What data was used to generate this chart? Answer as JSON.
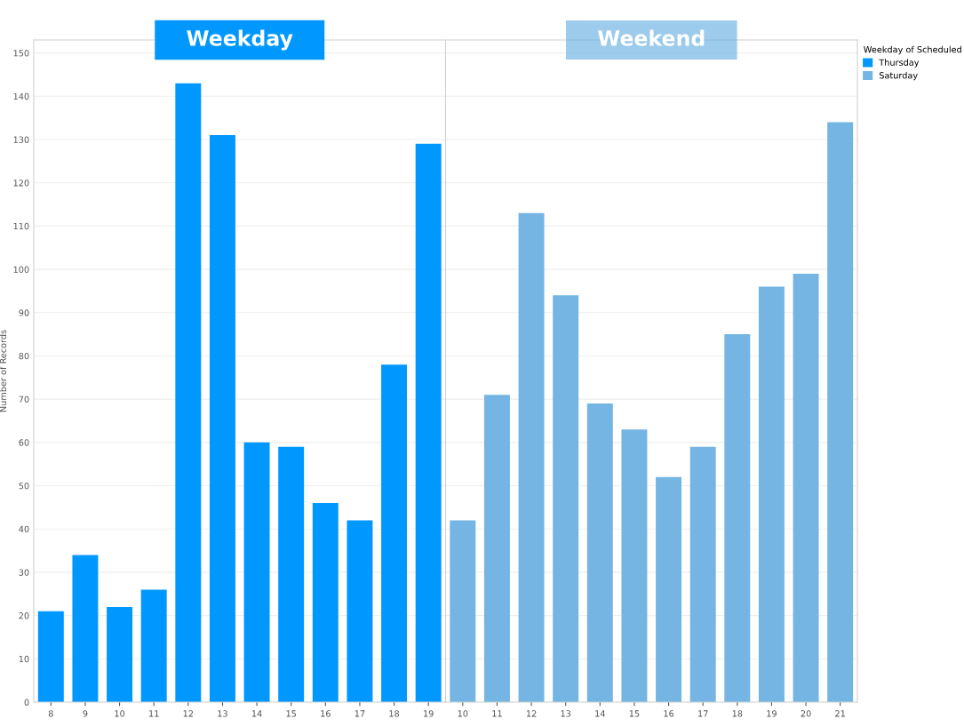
{
  "chart_data": [
    {
      "type": "bar",
      "title": "Weekday",
      "ylabel": "Number of Records",
      "categories": [
        "8",
        "9",
        "10",
        "11",
        "12",
        "13",
        "14",
        "15",
        "16",
        "17",
        "18",
        "19"
      ],
      "series": [
        {
          "name": "Thursday",
          "color": "#0098ff",
          "values": [
            21,
            34,
            22,
            26,
            143,
            131,
            60,
            59,
            46,
            42,
            78,
            129
          ]
        }
      ],
      "ylim": [
        0,
        153
      ],
      "yticks": [
        0,
        10,
        20,
        30,
        40,
        50,
        60,
        70,
        80,
        90,
        100,
        110,
        120,
        130,
        140,
        150
      ],
      "grid": "y"
    },
    {
      "type": "bar",
      "title": "Weekend",
      "categories": [
        "10",
        "11",
        "12",
        "13",
        "14",
        "15",
        "16",
        "17",
        "18",
        "19",
        "20",
        "21"
      ],
      "series": [
        {
          "name": "Saturday",
          "color": "#74b5e3",
          "values": [
            42,
            71,
            113,
            94,
            69,
            63,
            52,
            59,
            85,
            96,
            99,
            134
          ]
        }
      ],
      "ylim": [
        0,
        153
      ],
      "yticks": [
        0,
        10,
        20,
        30,
        40,
        50,
        60,
        70,
        80,
        90,
        100,
        110,
        120,
        130,
        140,
        150
      ],
      "grid": "y",
      "tick_labels": "x",
      "legend": "top right",
      "legend_title": "Weekday of Scheduled"
    }
  ]
}
